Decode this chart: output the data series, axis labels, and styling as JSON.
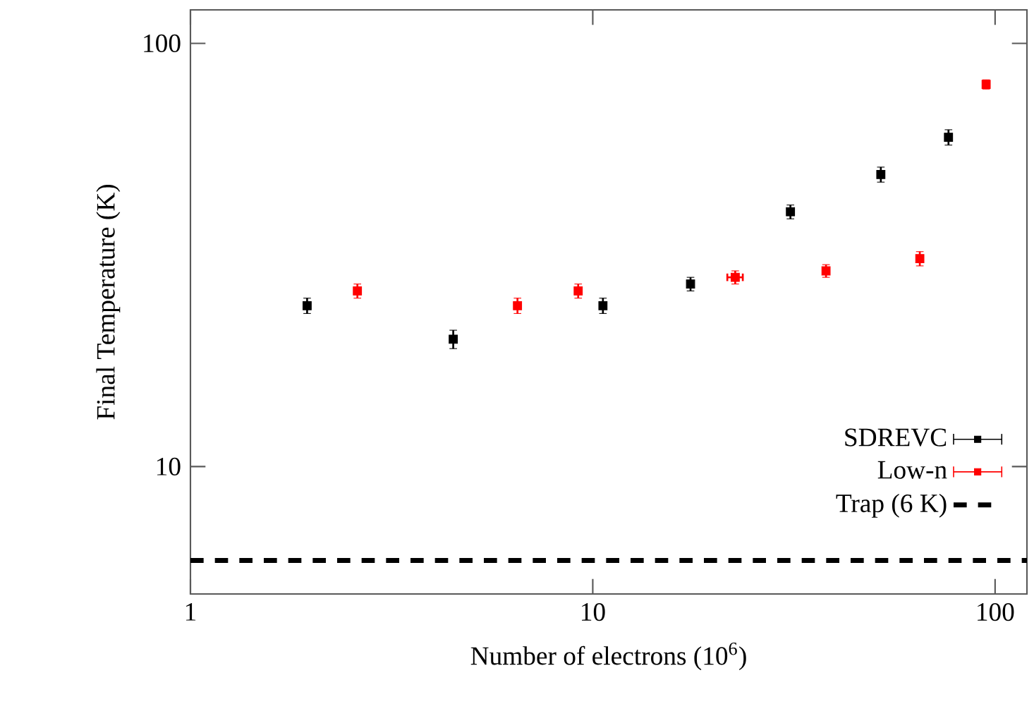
{
  "chart_data": {
    "type": "scatter",
    "xlabel": "Number of electrons (10$^{6}$)",
    "ylabel": "Final Temperature (K)",
    "log": "xy",
    "xlim": [
      1,
      120
    ],
    "ylim": [
      5,
      120
    ],
    "xticks": [
      1,
      10,
      100
    ],
    "yticks": [
      10,
      100
    ],
    "marker": "square",
    "legend": "bottom right",
    "grid": false,
    "series": [
      {
        "name": "SDREVC",
        "color": "#000000",
        "x": [
          1.95,
          4.5,
          10.6,
          17.5,
          31,
          52,
          76.6
        ],
        "values": [
          24,
          20,
          24,
          27,
          40,
          49,
          60
        ],
        "errors": [
          1,
          1,
          1,
          1,
          1.5,
          2,
          2.5
        ]
      },
      {
        "name": "Low-n",
        "color": "#ff0000",
        "x": [
          2.6,
          6.5,
          9.2,
          22.6,
          38,
          65,
          95
        ],
        "values": [
          26,
          24,
          26,
          28,
          29,
          31,
          80
        ],
        "errors": [
          1,
          1,
          1,
          1,
          1,
          1.2,
          2
        ],
        "xerrors": [
          null,
          null,
          null,
          1,
          null,
          null,
          null
        ]
      }
    ],
    "ref_lines": [
      {
        "axis": "y",
        "value": 6,
        "label": "Trap (6 K)",
        "color": "#000000",
        "line_style": "dashed"
      }
    ]
  }
}
